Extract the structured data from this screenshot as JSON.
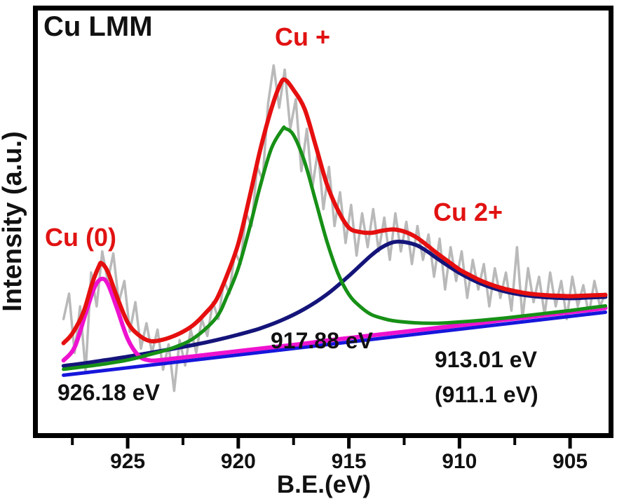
{
  "figure": {
    "title": "Cu LMM",
    "x_axis": {
      "label": "B.E.(eV)"
    },
    "y_axis": {
      "label": "Intensity (a.u.)"
    },
    "annotations": {
      "cu0": {
        "text": "Cu (0)",
        "color": "#e11212"
      },
      "cu_plus": {
        "text": "Cu +",
        "color": "#e11212"
      },
      "cu_2plus": {
        "text": "Cu 2+",
        "color": "#e11212"
      },
      "peak_cu_plus_ev": {
        "text": "917.88 eV",
        "color": "#111111"
      },
      "peak_cu0_ev": {
        "text": "926.18 eV",
        "color": "#111111"
      },
      "peak_cu2plus_ev_line1": {
        "text": "913.01 eV",
        "color": "#111111"
      },
      "peak_cu2plus_ev_line2": {
        "text": "(911.1 eV)",
        "color": "#111111"
      }
    },
    "colors": {
      "frame": "#000000",
      "text": "#111111"
    }
  },
  "chart_data": {
    "type": "line",
    "title": "Cu LMM Auger spectrum with fitted components",
    "xlabel": "B.E.(eV)",
    "ylabel": "Intensity (a.u.)",
    "x_direction": "reversed",
    "xlim": [
      929.06,
      903.26
    ],
    "ylim": [
      0,
      1
    ],
    "grid": false,
    "legend": "none",
    "major_ticks": [
      925,
      920,
      915,
      910,
      905
    ],
    "minor_ticks": [
      927.5,
      922.5,
      917.5,
      912.5,
      907.5
    ],
    "peaks": {
      "cu0_ev": 926.18,
      "cu_plus_ev": 917.88,
      "cu_2plus_ev": 913.01,
      "cu_2plus_alt_ev": 911.1
    },
    "series": [
      {
        "name": "raw-data",
        "color": "#b9b9b9",
        "width": 3.5,
        "smooth": false,
        "e_start": 927.9,
        "e_step": -0.25,
        "i": [
          0.27,
          0.33,
          0.19,
          0.3,
          0.145,
          0.38,
          0.3,
          0.43,
          0.36,
          0.425,
          0.31,
          0.36,
          0.24,
          0.31,
          0.2,
          0.26,
          0.19,
          0.245,
          0.15,
          0.21,
          0.1,
          0.22,
          0.16,
          0.245,
          0.19,
          0.27,
          0.23,
          0.31,
          0.27,
          0.36,
          0.33,
          0.43,
          0.4,
          0.52,
          0.49,
          0.63,
          0.6,
          0.78,
          0.87,
          0.77,
          0.86,
          0.72,
          0.79,
          0.62,
          0.72,
          0.58,
          0.67,
          0.53,
          0.63,
          0.49,
          0.57,
          0.45,
          0.54,
          0.42,
          0.52,
          0.44,
          0.53,
          0.43,
          0.51,
          0.41,
          0.52,
          0.43,
          0.5,
          0.4,
          0.49,
          0.41,
          0.47,
          0.37,
          0.46,
          0.34,
          0.44,
          0.36,
          0.43,
          0.32,
          0.41,
          0.34,
          0.4,
          0.3,
          0.39,
          0.32,
          0.38,
          0.29,
          0.44,
          0.27,
          0.39,
          0.31,
          0.37,
          0.28,
          0.38,
          0.3,
          0.36,
          0.27,
          0.37,
          0.3,
          0.35,
          0.28,
          0.36,
          0.3,
          0.33
        ]
      },
      {
        "name": "background",
        "color": "#1616dc",
        "width": 5,
        "smooth": false,
        "points": [
          [
            927.9,
            0.137
          ],
          [
            903.4,
            0.286
          ]
        ]
      },
      {
        "name": "cu-2plus-component",
        "color": "#14147a",
        "width": 5.5,
        "smooth": true,
        "points": [
          [
            927.9,
            0.159
          ],
          [
            927.0,
            0.165
          ],
          [
            926.0,
            0.173
          ],
          [
            925.0,
            0.181
          ],
          [
            924.0,
            0.19
          ],
          [
            923.0,
            0.199
          ],
          [
            922.0,
            0.209
          ],
          [
            921.0,
            0.22
          ],
          [
            920.0,
            0.233
          ],
          [
            919.0,
            0.248
          ],
          [
            918.0,
            0.268
          ],
          [
            917.0,
            0.294
          ],
          [
            916.0,
            0.328
          ],
          [
            915.0,
            0.372
          ],
          [
            914.0,
            0.42
          ],
          [
            913.4,
            0.443
          ],
          [
            912.8,
            0.453
          ],
          [
            912.0,
            0.446
          ],
          [
            911.4,
            0.428
          ],
          [
            911.0,
            0.413
          ],
          [
            910.0,
            0.379
          ],
          [
            909.0,
            0.353
          ],
          [
            908.0,
            0.336
          ],
          [
            907.0,
            0.326
          ],
          [
            906.0,
            0.321
          ],
          [
            905.0,
            0.319
          ],
          [
            904.0,
            0.321
          ],
          [
            903.4,
            0.322
          ]
        ]
      },
      {
        "name": "cu0-component",
        "color": "#ee12cf",
        "width": 6,
        "smooth": true,
        "points": [
          [
            927.9,
            0.172
          ],
          [
            927.4,
            0.203
          ],
          [
            926.9,
            0.283
          ],
          [
            926.5,
            0.345
          ],
          [
            926.18,
            0.365
          ],
          [
            925.9,
            0.353
          ],
          [
            925.5,
            0.298
          ],
          [
            925.0,
            0.223
          ],
          [
            924.5,
            0.183
          ],
          [
            924.0,
            0.172
          ],
          [
            923.5,
            0.173
          ],
          [
            923.0,
            0.176
          ],
          [
            922.0,
            0.182
          ],
          [
            921.0,
            0.188
          ],
          [
            920.0,
            0.194
          ],
          [
            919.0,
            0.2
          ],
          [
            918.0,
            0.206
          ],
          [
            917.0,
            0.212
          ],
          [
            916.0,
            0.219
          ],
          [
            915.0,
            0.225
          ],
          [
            914.0,
            0.231
          ],
          [
            913.0,
            0.237
          ],
          [
            912.0,
            0.243
          ],
          [
            911.0,
            0.249
          ],
          [
            910.0,
            0.255
          ],
          [
            909.0,
            0.261
          ],
          [
            908.0,
            0.268
          ],
          [
            907.0,
            0.274
          ],
          [
            906.0,
            0.28
          ],
          [
            905.0,
            0.286
          ],
          [
            904.0,
            0.292
          ],
          [
            903.4,
            0.296
          ]
        ]
      },
      {
        "name": "cu-plus-component",
        "color": "#169016",
        "width": 5,
        "smooth": true,
        "points": [
          [
            927.9,
            0.151
          ],
          [
            927.0,
            0.157
          ],
          [
            926.0,
            0.164
          ],
          [
            925.0,
            0.173
          ],
          [
            924.0,
            0.186
          ],
          [
            923.0,
            0.201
          ],
          [
            922.0,
            0.225
          ],
          [
            921.0,
            0.273
          ],
          [
            920.5,
            0.325
          ],
          [
            920.0,
            0.39
          ],
          [
            919.5,
            0.483
          ],
          [
            919.0,
            0.586
          ],
          [
            918.5,
            0.674
          ],
          [
            918.0,
            0.719
          ],
          [
            917.88,
            0.721
          ],
          [
            917.5,
            0.705
          ],
          [
            917.0,
            0.642
          ],
          [
            916.5,
            0.549
          ],
          [
            916.0,
            0.455
          ],
          [
            915.5,
            0.379
          ],
          [
            915.0,
            0.328
          ],
          [
            914.5,
            0.3
          ],
          [
            914.0,
            0.281
          ],
          [
            913.5,
            0.272
          ],
          [
            913.0,
            0.266
          ],
          [
            912.0,
            0.261
          ],
          [
            911.0,
            0.26
          ],
          [
            910.0,
            0.263
          ],
          [
            909.0,
            0.267
          ],
          [
            908.0,
            0.272
          ],
          [
            907.0,
            0.278
          ],
          [
            906.0,
            0.284
          ],
          [
            905.0,
            0.29
          ],
          [
            904.0,
            0.297
          ],
          [
            903.4,
            0.301
          ]
        ]
      },
      {
        "name": "envelope",
        "color": "#e60f0f",
        "width": 6,
        "smooth": true,
        "points": [
          [
            927.9,
            0.213
          ],
          [
            927.5,
            0.236
          ],
          [
            927.0,
            0.286
          ],
          [
            926.6,
            0.355
          ],
          [
            926.3,
            0.395
          ],
          [
            926.18,
            0.402
          ],
          [
            925.9,
            0.382
          ],
          [
            925.5,
            0.325
          ],
          [
            925.0,
            0.262
          ],
          [
            924.5,
            0.232
          ],
          [
            924.0,
            0.218
          ],
          [
            923.5,
            0.22
          ],
          [
            923.0,
            0.228
          ],
          [
            922.5,
            0.24
          ],
          [
            922.0,
            0.257
          ],
          [
            921.5,
            0.283
          ],
          [
            921.0,
            0.315
          ],
          [
            920.5,
            0.375
          ],
          [
            920.0,
            0.448
          ],
          [
            919.5,
            0.556
          ],
          [
            919.0,
            0.672
          ],
          [
            918.5,
            0.768
          ],
          [
            918.1,
            0.826
          ],
          [
            917.88,
            0.836
          ],
          [
            917.5,
            0.812
          ],
          [
            917.0,
            0.767
          ],
          [
            916.5,
            0.68
          ],
          [
            916.0,
            0.59
          ],
          [
            915.5,
            0.528
          ],
          [
            915.0,
            0.486
          ],
          [
            914.5,
            0.476
          ],
          [
            914.0,
            0.474
          ],
          [
            913.5,
            0.479
          ],
          [
            913.0,
            0.482
          ],
          [
            912.5,
            0.477
          ],
          [
            912.0,
            0.465
          ],
          [
            911.5,
            0.446
          ],
          [
            911.0,
            0.425
          ],
          [
            910.5,
            0.406
          ],
          [
            910.0,
            0.387
          ],
          [
            909.5,
            0.373
          ],
          [
            909.0,
            0.36
          ],
          [
            908.5,
            0.35
          ],
          [
            908.0,
            0.342
          ],
          [
            907.5,
            0.336
          ],
          [
            907.0,
            0.331
          ],
          [
            906.5,
            0.328
          ],
          [
            906.0,
            0.326
          ],
          [
            905.5,
            0.325
          ],
          [
            905.0,
            0.324
          ],
          [
            904.5,
            0.325
          ],
          [
            904.0,
            0.326
          ],
          [
            903.4,
            0.327
          ]
        ]
      }
    ]
  }
}
